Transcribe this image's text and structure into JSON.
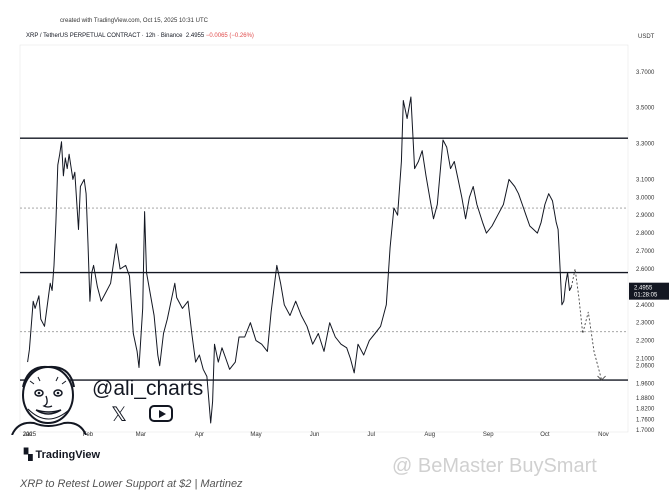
{
  "header": {
    "created": "created with TradingView.com, Oct 15, 2025 10:31 UTC",
    "symbol": "XRP / TetherUS PERPETUAL CONTRACT · 12h · Binance",
    "price": "2.4955",
    "change": "−0.0065 (−0.26%)",
    "currency": "USDT"
  },
  "overlay": {
    "handle": "@ali_charts",
    "x_icon": "𝕏"
  },
  "footer": {
    "logo": "TradingView",
    "caption": "XRP to Retest Lower Support at $2 | Martinez",
    "watermark": "@ BeMaster BuySmart"
  },
  "colors": {
    "price_line": "#131722",
    "level_solid": "#131722",
    "level_dotted": "#9a9a9a",
    "label_bg": "#131722"
  },
  "chart_data": {
    "type": "line",
    "series_name": "XRP / TetherUS PERPETUAL CONTRACT",
    "ylim": [
      1.69,
      3.85
    ],
    "y_ticks": [
      "3.7000",
      "3.5000",
      "3.3000",
      "3.1000",
      "3.0000",
      "2.9000",
      "2.8000",
      "2.7000",
      "2.6000",
      "2.4000",
      "2.3000",
      "2.2000",
      "2.1000",
      "2.0600",
      "1.9600",
      "1.8800",
      "1.8200",
      "1.7600",
      "1.7000"
    ],
    "x_ticks": [
      "Jan",
      "2025",
      "Feb",
      "Mar",
      "Apr",
      "May",
      "Jun",
      "Jul",
      "Aug",
      "Sep",
      "Oct",
      "Nov"
    ],
    "x_tick_dates": [
      "2024-12-31",
      "2025-01-01",
      "2025-02-01",
      "2025-03-01",
      "2025-04-01",
      "2025-05-01",
      "2025-06-01",
      "2025-07-01",
      "2025-08-01",
      "2025-09-01",
      "2025-10-01",
      "2025-11-01"
    ],
    "price_label": "2.4955",
    "countdown_label": "01:28:05",
    "levels_solid": [
      3.33,
      2.58,
      1.98
    ],
    "levels_dotted": [
      2.94,
      2.25
    ],
    "points": [
      [
        "2024-12-31",
        2.08
      ],
      [
        "2025-01-01",
        2.15
      ],
      [
        "2025-01-03",
        2.42
      ],
      [
        "2025-01-04",
        2.38
      ],
      [
        "2025-01-06",
        2.45
      ],
      [
        "2025-01-07",
        2.32
      ],
      [
        "2025-01-09",
        2.28
      ],
      [
        "2025-01-10",
        2.36
      ],
      [
        "2025-01-12",
        2.52
      ],
      [
        "2025-01-13",
        2.48
      ],
      [
        "2025-01-14",
        2.62
      ],
      [
        "2025-01-15",
        2.86
      ],
      [
        "2025-01-16",
        3.18
      ],
      [
        "2025-01-17",
        3.24
      ],
      [
        "2025-01-18",
        3.31
      ],
      [
        "2025-01-19",
        3.12
      ],
      [
        "2025-01-20",
        3.22
      ],
      [
        "2025-01-21",
        3.16
      ],
      [
        "2025-01-22",
        3.24
      ],
      [
        "2025-01-24",
        3.1
      ],
      [
        "2025-01-25",
        3.14
      ],
      [
        "2025-01-27",
        2.82
      ],
      [
        "2025-01-28",
        3.06
      ],
      [
        "2025-01-30",
        3.1
      ],
      [
        "2025-01-31",
        3.02
      ],
      [
        "2025-02-01",
        2.74
      ],
      [
        "2025-02-02",
        2.42
      ],
      [
        "2025-02-03",
        2.58
      ],
      [
        "2025-02-04",
        2.62
      ],
      [
        "2025-02-06",
        2.5
      ],
      [
        "2025-02-08",
        2.42
      ],
      [
        "2025-02-10",
        2.46
      ],
      [
        "2025-02-13",
        2.52
      ],
      [
        "2025-02-16",
        2.74
      ],
      [
        "2025-02-18",
        2.6
      ],
      [
        "2025-02-21",
        2.62
      ],
      [
        "2025-02-23",
        2.56
      ],
      [
        "2025-02-25",
        2.24
      ],
      [
        "2025-02-27",
        2.14
      ],
      [
        "2025-02-28",
        2.05
      ],
      [
        "2025-03-02",
        2.38
      ],
      [
        "2025-03-03",
        2.92
      ],
      [
        "2025-03-04",
        2.58
      ],
      [
        "2025-03-06",
        2.46
      ],
      [
        "2025-03-08",
        2.34
      ],
      [
        "2025-03-10",
        2.12
      ],
      [
        "2025-03-11",
        2.06
      ],
      [
        "2025-03-13",
        2.24
      ],
      [
        "2025-03-15",
        2.32
      ],
      [
        "2025-03-19",
        2.52
      ],
      [
        "2025-03-20",
        2.44
      ],
      [
        "2025-03-23",
        2.38
      ],
      [
        "2025-03-26",
        2.42
      ],
      [
        "2025-03-28",
        2.24
      ],
      [
        "2025-03-30",
        2.08
      ],
      [
        "2025-04-01",
        2.12
      ],
      [
        "2025-04-03",
        2.04
      ],
      [
        "2025-04-05",
        2.0
      ],
      [
        "2025-04-07",
        1.74
      ],
      [
        "2025-04-08",
        1.86
      ],
      [
        "2025-04-09",
        2.18
      ],
      [
        "2025-04-11",
        2.08
      ],
      [
        "2025-04-13",
        2.16
      ],
      [
        "2025-04-15",
        2.1
      ],
      [
        "2025-04-17",
        2.04
      ],
      [
        "2025-04-20",
        2.08
      ],
      [
        "2025-04-22",
        2.22
      ],
      [
        "2025-04-25",
        2.22
      ],
      [
        "2025-04-28",
        2.3
      ],
      [
        "2025-05-01",
        2.2
      ],
      [
        "2025-05-04",
        2.18
      ],
      [
        "2025-05-07",
        2.14
      ],
      [
        "2025-05-09",
        2.36
      ],
      [
        "2025-05-12",
        2.62
      ],
      [
        "2025-05-14",
        2.52
      ],
      [
        "2025-05-16",
        2.4
      ],
      [
        "2025-05-19",
        2.34
      ],
      [
        "2025-05-22",
        2.42
      ],
      [
        "2025-05-25",
        2.34
      ],
      [
        "2025-05-28",
        2.28
      ],
      [
        "2025-05-31",
        2.18
      ],
      [
        "2025-06-03",
        2.24
      ],
      [
        "2025-06-06",
        2.14
      ],
      [
        "2025-06-09",
        2.3
      ],
      [
        "2025-06-12",
        2.22
      ],
      [
        "2025-06-15",
        2.18
      ],
      [
        "2025-06-18",
        2.16
      ],
      [
        "2025-06-20",
        2.1
      ],
      [
        "2025-06-22",
        2.02
      ],
      [
        "2025-06-24",
        2.18
      ],
      [
        "2025-06-27",
        2.12
      ],
      [
        "2025-06-30",
        2.2
      ],
      [
        "2025-07-03",
        2.24
      ],
      [
        "2025-07-06",
        2.28
      ],
      [
        "2025-07-09",
        2.4
      ],
      [
        "2025-07-11",
        2.72
      ],
      [
        "2025-07-13",
        2.94
      ],
      [
        "2025-07-15",
        2.9
      ],
      [
        "2025-07-17",
        3.2
      ],
      [
        "2025-07-18",
        3.54
      ],
      [
        "2025-07-20",
        3.44
      ],
      [
        "2025-07-22",
        3.56
      ],
      [
        "2025-07-24",
        3.16
      ],
      [
        "2025-07-26",
        3.2
      ],
      [
        "2025-07-28",
        3.26
      ],
      [
        "2025-07-30",
        3.12
      ],
      [
        "2025-08-01",
        3.0
      ],
      [
        "2025-08-03",
        2.88
      ],
      [
        "2025-08-05",
        2.96
      ],
      [
        "2025-08-08",
        3.32
      ],
      [
        "2025-08-10",
        3.28
      ],
      [
        "2025-08-12",
        3.16
      ],
      [
        "2025-08-14",
        3.2
      ],
      [
        "2025-08-16",
        3.1
      ],
      [
        "2025-08-18",
        3.0
      ],
      [
        "2025-08-20",
        2.88
      ],
      [
        "2025-08-22",
        3.0
      ],
      [
        "2025-08-24",
        3.06
      ],
      [
        "2025-08-26",
        2.96
      ],
      [
        "2025-08-29",
        2.86
      ],
      [
        "2025-08-31",
        2.8
      ],
      [
        "2025-09-03",
        2.84
      ],
      [
        "2025-09-06",
        2.9
      ],
      [
        "2025-09-09",
        2.96
      ],
      [
        "2025-09-12",
        3.1
      ],
      [
        "2025-09-15",
        3.06
      ],
      [
        "2025-09-17",
        3.02
      ],
      [
        "2025-09-19",
        2.96
      ],
      [
        "2025-09-21",
        2.9
      ],
      [
        "2025-09-23",
        2.84
      ],
      [
        "2025-09-25",
        2.82
      ],
      [
        "2025-09-27",
        2.8
      ],
      [
        "2025-09-29",
        2.86
      ],
      [
        "2025-10-01",
        2.96
      ],
      [
        "2025-10-03",
        3.02
      ],
      [
        "2025-10-05",
        2.98
      ],
      [
        "2025-10-07",
        2.86
      ],
      [
        "2025-10-08",
        2.82
      ],
      [
        "2025-10-10",
        2.4
      ],
      [
        "2025-10-11",
        2.42
      ],
      [
        "2025-10-12",
        2.52
      ],
      [
        "2025-10-13",
        2.58
      ],
      [
        "2025-10-14",
        2.48
      ],
      [
        "2025-10-15",
        2.5
      ]
    ],
    "projection": [
      [
        "2025-10-15",
        2.5
      ],
      [
        "2025-10-17",
        2.6
      ],
      [
        "2025-10-19",
        2.44
      ],
      [
        "2025-10-21",
        2.24
      ],
      [
        "2025-10-24",
        2.36
      ],
      [
        "2025-10-27",
        2.14
      ],
      [
        "2025-10-31",
        1.98
      ]
    ]
  }
}
